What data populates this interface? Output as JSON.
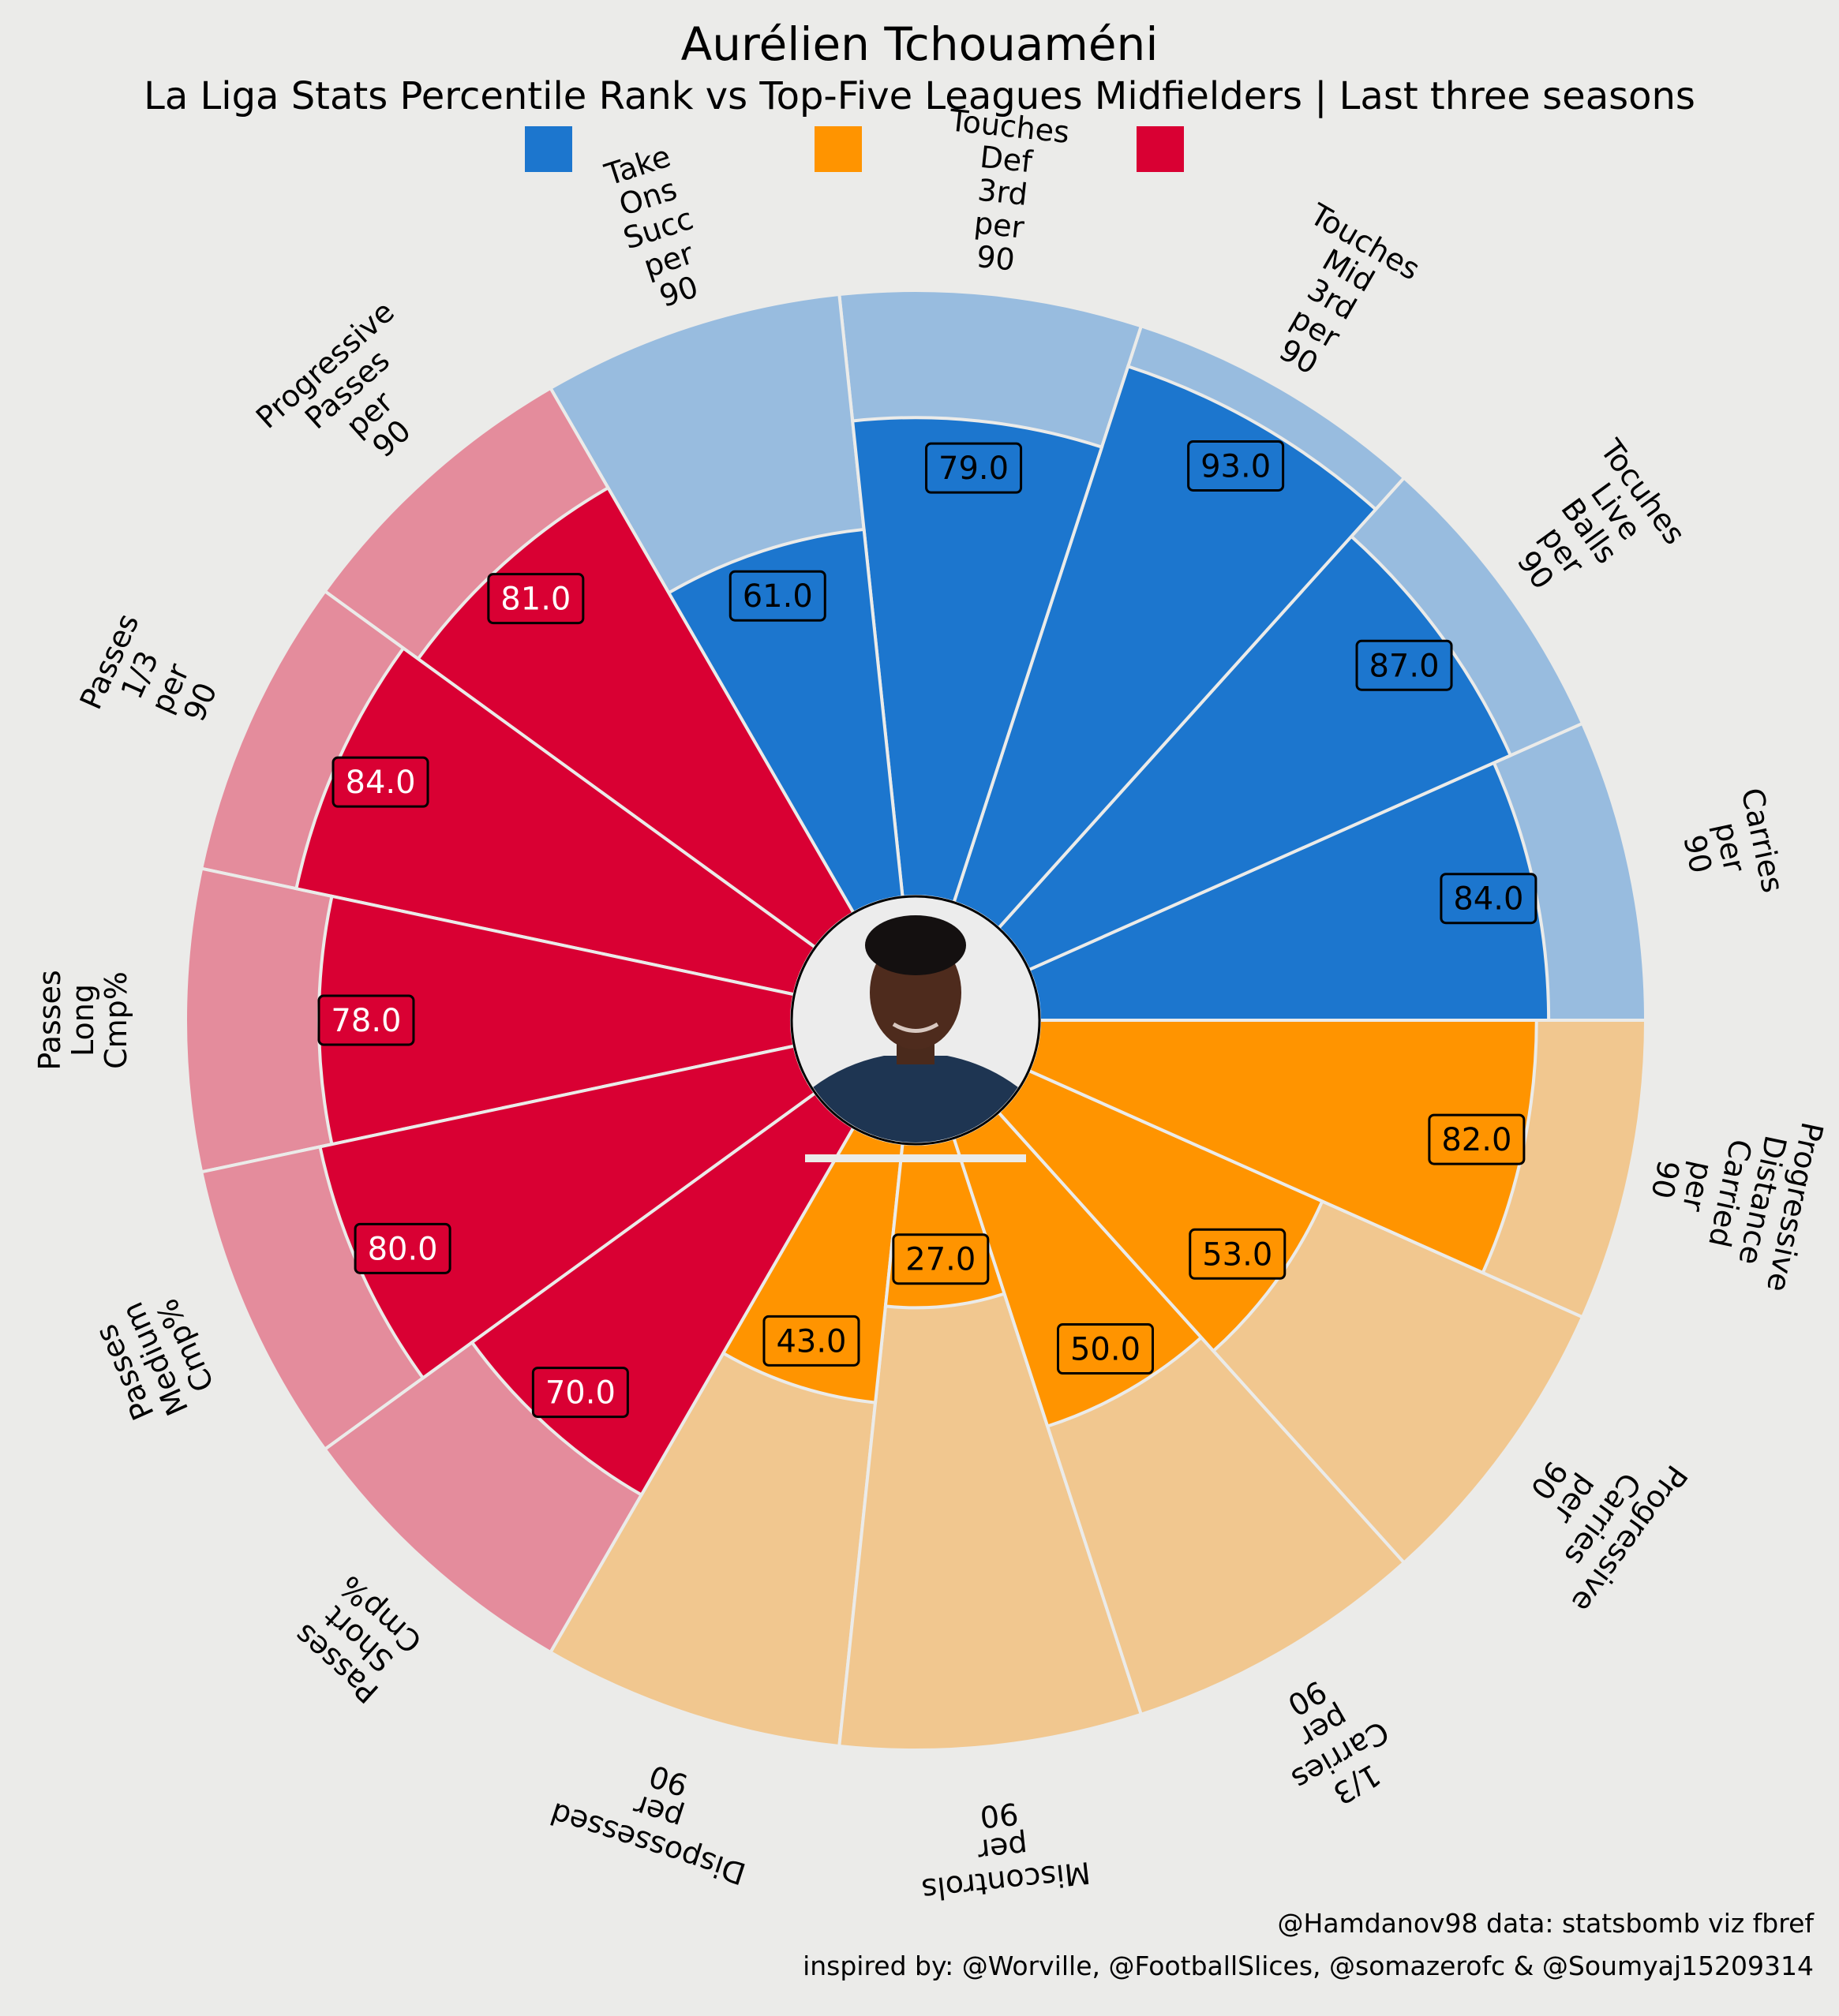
{
  "title": "Aurélien Tchouaméni",
  "subtitle": "La Liga Stats Percentile Rank vs Top-Five Leagues Midfielders | Last three seasons",
  "credits": {
    "line1": "@Hamdanov98 data: statsbomb viz fbref",
    "line2": "inspired by: @Worville, @FootballSlices, @somazerofc & @Soumyaj15209314"
  },
  "colors": {
    "background": "#ebebe9",
    "blue": "#1c76ce",
    "blue_light": "#98bcdf",
    "orange": "#ff9400",
    "orange_light": "#f1c78f",
    "red": "#d90033",
    "red_light": "#e48c9c",
    "divider": "#ebebe9"
  },
  "legend": [
    {
      "color": "#1c76ce",
      "label": ""
    },
    {
      "color": "#ff9400",
      "label": ""
    },
    {
      "color": "#d90033",
      "label": ""
    }
  ],
  "center_image": "player-photo",
  "chart_data": {
    "type": "radial-bar",
    "scale": [
      0,
      100
    ],
    "start_angle_deg": 0,
    "direction": "counterclockwise",
    "categories": [
      "Carries per 90",
      "Tocuhes Live Balls per 90",
      "Touches Mid 3rd per 90",
      "Touches Def 3rd per 90",
      "Take Ons Succ per 90",
      "Progressive Passes per 90",
      "Passes 1/3 per 90",
      "Passes Long Cmp%",
      "Passes Medium Cmp%",
      "Passes Short Cmp%",
      "Dispossessed per 90",
      "Miscontrols per 90",
      "1/3 Carries per 90",
      "Progressive Carries per 90",
      "Progressive Distance Carried per 90"
    ],
    "label_lines": [
      [
        "Carries",
        "per",
        "90"
      ],
      [
        "Tocuhes",
        "Live",
        "Balls",
        "per",
        "90"
      ],
      [
        "Touches",
        "Mid",
        "3rd",
        "per",
        "90"
      ],
      [
        "Touches",
        "Def",
        "3rd",
        "per",
        "90"
      ],
      [
        "Take",
        "Ons",
        "Succ",
        "per",
        "90"
      ],
      [
        "Progressive",
        "Passes",
        "per",
        "90"
      ],
      [
        "Passes",
        "1/3",
        "per",
        "90"
      ],
      [
        "Passes",
        "Long",
        "Cmp%"
      ],
      [
        "Passes",
        "Medium",
        "Cmp%"
      ],
      [
        "Passes",
        "Short",
        "Cmp%"
      ],
      [
        "Dispossessed",
        "per",
        "90"
      ],
      [
        "Miscontrols",
        "per",
        "90"
      ],
      [
        "1/3",
        "Carries",
        "per",
        "90"
      ],
      [
        "Progressive",
        "Carries",
        "per",
        "90"
      ],
      [
        "Progressive",
        "Distance",
        "Carried",
        "per",
        "90"
      ]
    ],
    "values": [
      84.0,
      87.0,
      93.0,
      79.0,
      61.0,
      81.0,
      84.0,
      78.0,
      80.0,
      70.0,
      43.0,
      27.0,
      50.0,
      53.0,
      82.0
    ],
    "value_labels": [
      "84.0",
      "87.0",
      "93.0",
      "79.0",
      "61.0",
      "81.0",
      "84.0",
      "78.0",
      "80.0",
      "70.0",
      "43.0",
      "27.0",
      "50.0",
      "53.0",
      "82.0"
    ],
    "groups": [
      "blue",
      "blue",
      "blue",
      "blue",
      "blue",
      "red",
      "red",
      "red",
      "red",
      "red",
      "orange",
      "orange",
      "orange",
      "orange",
      "orange"
    ]
  }
}
